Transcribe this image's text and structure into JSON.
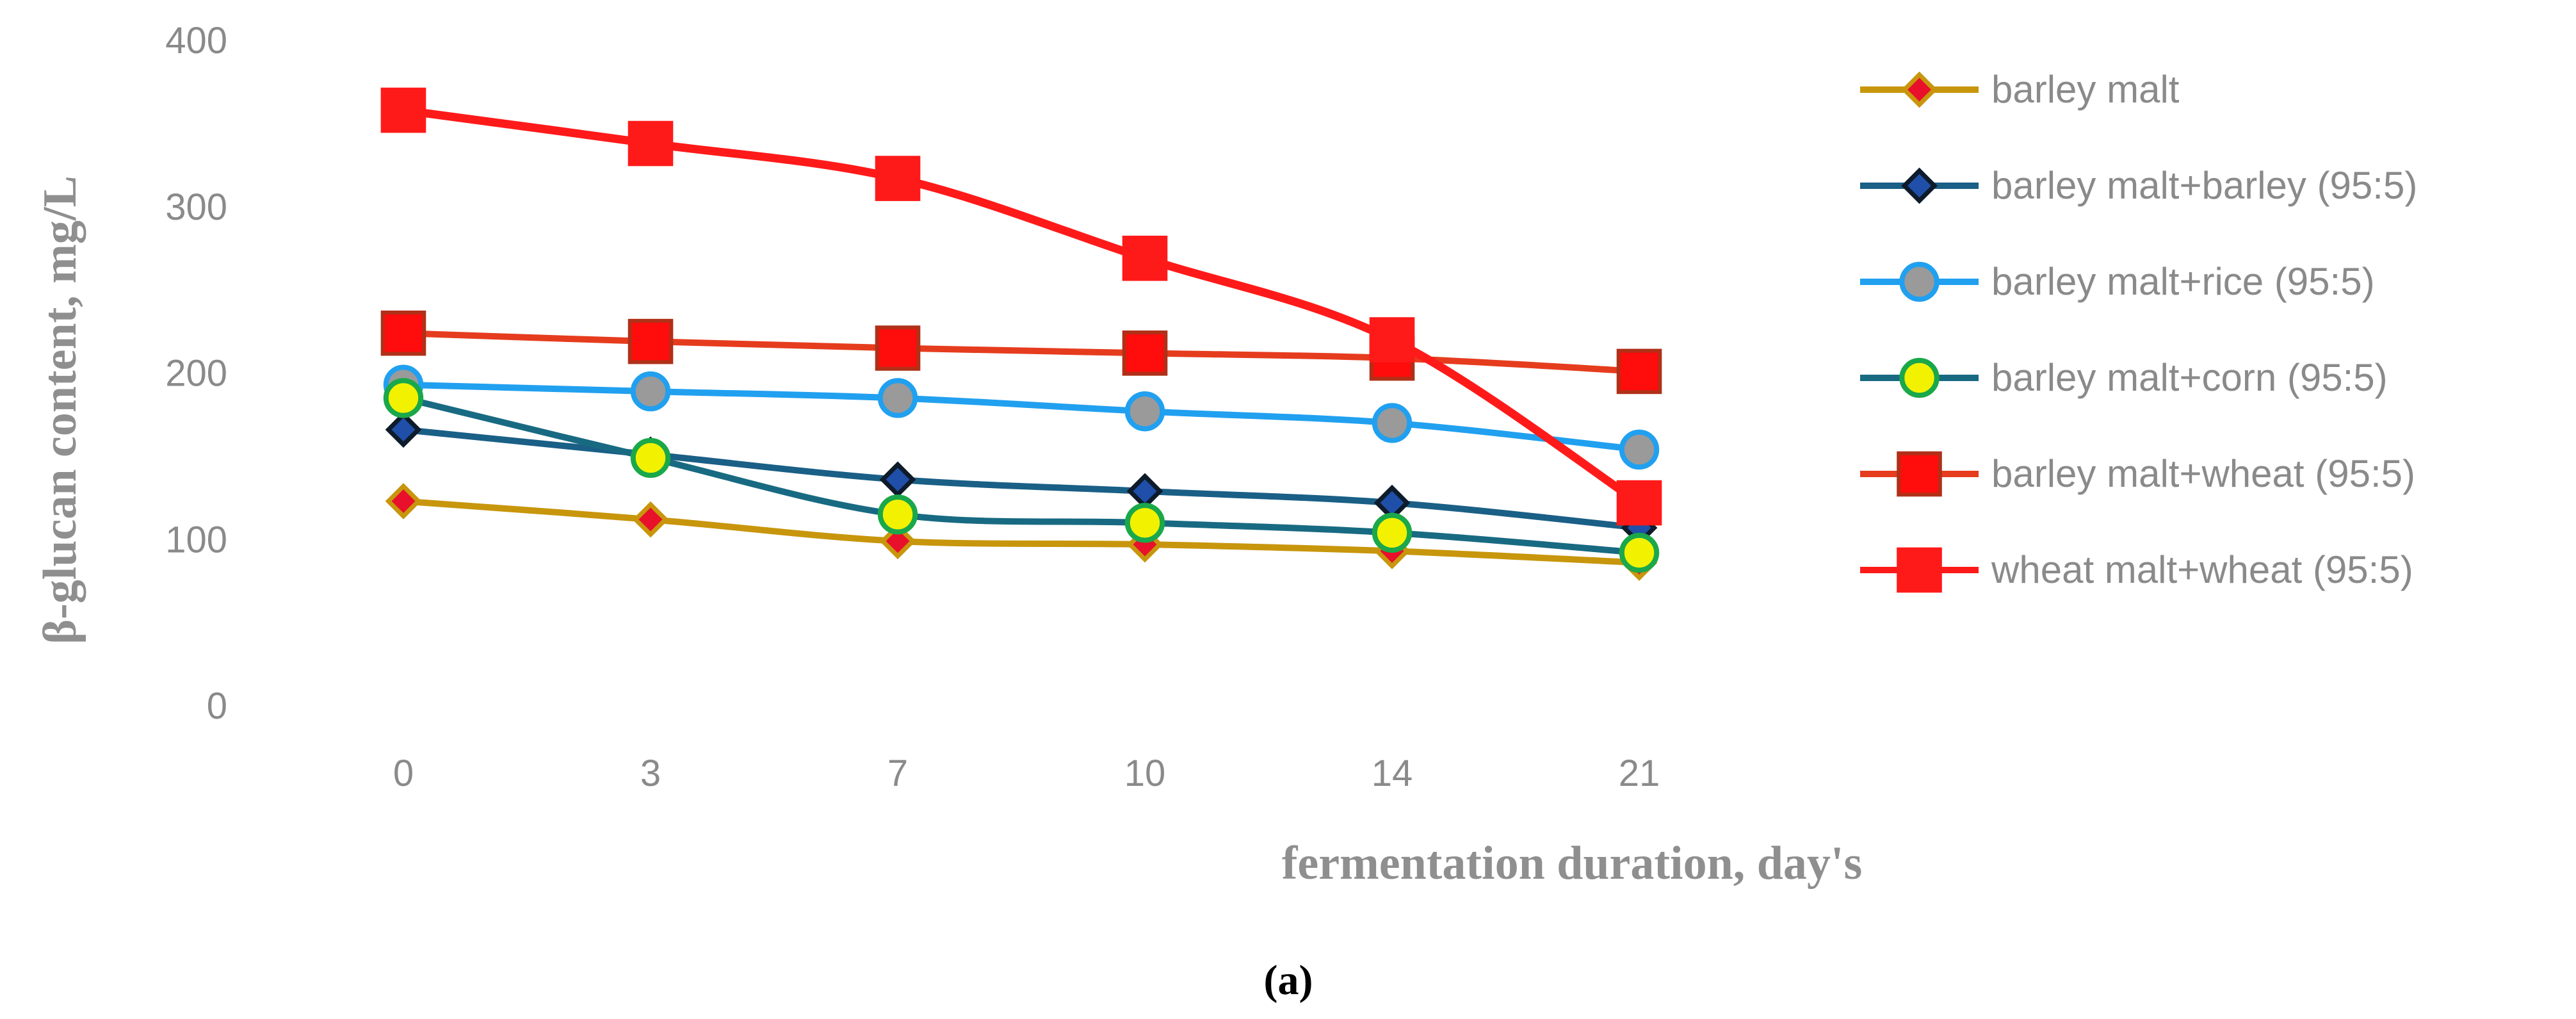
{
  "chart_data": {
    "type": "line",
    "title": "",
    "caption": "(a)",
    "xlabel": "fermentation duration, day's",
    "ylabel": "β-glucan content, mg/L",
    "categories": [
      "0",
      "3",
      "7",
      "10",
      "14",
      "21"
    ],
    "ylim": [
      0,
      400
    ],
    "yticks": [
      0,
      100,
      200,
      300,
      400
    ],
    "grid": false,
    "legend_position": "right",
    "series": [
      {
        "name": "barley malt",
        "values": [
          123,
          112,
          99,
          97,
          93,
          86
        ],
        "color": "#c8960c",
        "marker": "diamond",
        "marker_fill": "#e8102a",
        "marker_stroke": "#c8960c"
      },
      {
        "name": "barley malt+barley (95:5)",
        "values": [
          166,
          151,
          136,
          129,
          122,
          107
        ],
        "color": "#1a5f86",
        "marker": "diamond",
        "marker_fill": "#1f4fa8",
        "marker_stroke": "#0d1b2a"
      },
      {
        "name": "barley malt+rice (95:5)",
        "values": [
          193,
          189,
          185,
          177,
          170,
          154
        ],
        "color": "#21a0f0",
        "marker": "circle",
        "marker_fill": "#9a9a9a",
        "marker_stroke": "#21a0f0"
      },
      {
        "name": "barley malt+corn (95:5)",
        "values": [
          185,
          149,
          115,
          110,
          104,
          92
        ],
        "color": "#186a82",
        "marker": "circle",
        "marker_fill": "#f2f200",
        "marker_stroke": "#1aa84a"
      },
      {
        "name": "barley malt+wheat (95:5)",
        "values": [
          224,
          219,
          215,
          212,
          209,
          201
        ],
        "color": "#e63c1e",
        "marker": "square",
        "marker_fill": "#ff0c0c",
        "marker_stroke": "#b03018"
      },
      {
        "name": "wheat malt+wheat (95:5)",
        "values": [
          358,
          338,
          317,
          269,
          220,
          122
        ],
        "color": "#ff1a1a",
        "marker": "square",
        "marker_fill": "#ff1a1a",
        "marker_stroke": "#ff1a1a"
      }
    ]
  }
}
